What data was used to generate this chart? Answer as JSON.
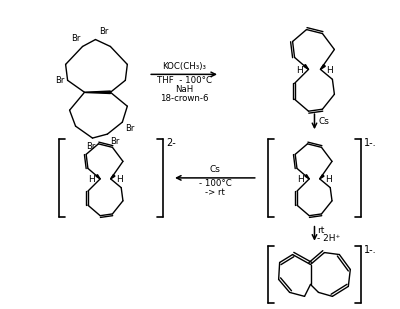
{
  "bg_color": "#ffffff",
  "line_color": "#000000",
  "lw": 1.0,
  "reaction_text_1_above": "KOC(CH₃)₃",
  "reaction_text_1_below1": "THF  - 100°C",
  "reaction_text_1_below2": "NaH",
  "reaction_text_1_below3": "18-crown-6",
  "cs_label_1": "Cs",
  "charge_2minus": "2-",
  "charge_1minus_a": "1-.",
  "charge_1minus_b": "1-.",
  "cs_label_2": "Cs",
  "temp_label": "- 100°C",
  "rt_label": "-> rt",
  "rt_label2": "rt",
  "minus2h_label": "- 2H⁺",
  "H_label": "H"
}
